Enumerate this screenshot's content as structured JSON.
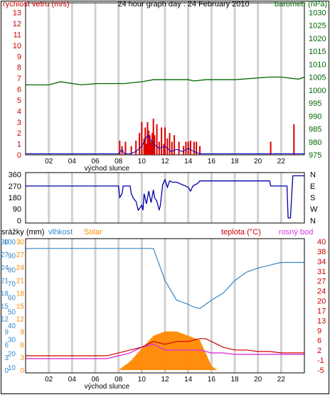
{
  "chart_data": [
    {
      "type": "line",
      "title": "24 hour graph day : 24 February 2010",
      "left_axis_label": "rychlost vetru (m/s)",
      "right_axis_label": "barometr (hPa)",
      "x_ticks": [
        "02",
        "04",
        "06",
        "08",
        "10",
        "12",
        "14",
        "16",
        "18",
        "20",
        "22"
      ],
      "x_caption": "východ slunce",
      "left_ticks": [
        "0",
        "1",
        "2",
        "3",
        "4",
        "5",
        "6",
        "7",
        "8",
        "9",
        "10",
        "11",
        "12",
        "13"
      ],
      "right_ticks": [
        "975",
        "980",
        "985",
        "990",
        "995",
        "1000",
        "1005",
        "1010",
        "1015",
        "1020",
        "1025",
        "1030"
      ],
      "ylim_left": [
        0,
        13.5
      ],
      "ylim_right": [
        975,
        1032
      ],
      "series": [
        {
          "name": "barometr",
          "color": "#006600",
          "axis": "right",
          "x": [
            0,
            2,
            3,
            4.8,
            6.2,
            8.5,
            10,
            11,
            14,
            14.5,
            15.5,
            17,
            18,
            21,
            22,
            23.5,
            24
          ],
          "y": [
            1002,
            1002,
            1003.2,
            1002,
            1002.5,
            1002.5,
            1003.2,
            1004,
            1004,
            1003.5,
            1004,
            1004,
            1004,
            1005,
            1005,
            1004.2,
            1005
          ]
        },
        {
          "name": "rychlost vetru",
          "color": "#dd0000",
          "axis": "left",
          "type": "bar",
          "x": [
            8.1,
            8.3,
            8.6,
            9.1,
            9.5,
            9.8,
            10.0,
            10.2,
            10.3,
            10.4,
            10.5,
            10.6,
            10.7,
            10.8,
            10.9,
            11.0,
            11.1,
            11.3,
            11.5,
            11.7,
            11.9,
            12.0,
            12.2,
            12.4,
            12.6,
            12.8,
            13.2,
            13.6,
            13.8,
            14.0,
            14.2,
            14.5,
            14.7,
            15.0,
            21.1,
            23.1
          ],
          "y": [
            1.3,
            0.8,
            1.2,
            0.8,
            1.3,
            2.0,
            3.0,
            1.5,
            2.5,
            1.0,
            3.0,
            2.2,
            1.8,
            1.2,
            2.0,
            3.3,
            1.8,
            2.8,
            1.2,
            2.5,
            1.0,
            2.5,
            1.5,
            2.0,
            1.2,
            1.8,
            1.2,
            0.8,
            1.2,
            1.2,
            1.3,
            1.2,
            1.2,
            0.8,
            1.2,
            2.8
          ]
        },
        {
          "name": "gust",
          "color": "#0000cc",
          "axis": "left",
          "x": [
            0,
            8.0,
            8.3,
            8.5,
            9.0,
            9.5,
            10.0,
            10.5,
            11.0,
            11.5,
            12.0,
            12.5,
            13.0,
            13.5,
            14.0,
            14.5,
            15.0,
            16.0,
            24
          ],
          "y": [
            0.1,
            0.1,
            0.5,
            0.1,
            0.1,
            0.3,
            0.8,
            1.8,
            1.0,
            0.6,
            0.8,
            0.3,
            0.5,
            0.3,
            0.6,
            0.3,
            0.1,
            0.1,
            0.1
          ]
        }
      ]
    },
    {
      "type": "line",
      "left_ticks": [
        "0",
        "90",
        "180",
        "270",
        "360"
      ],
      "right_ticks": [
        "N",
        "W",
        "S",
        "E",
        "N"
      ],
      "ylim": [
        -20,
        375
      ],
      "series": [
        {
          "name": "wind direction",
          "color": "#0000aa",
          "x": [
            0,
            8.0,
            8.1,
            8.3,
            8.4,
            9.0,
            9.1,
            9.3,
            9.5,
            9.7,
            10.0,
            10.1,
            10.2,
            10.4,
            10.6,
            10.8,
            11.0,
            11.1,
            11.3,
            11.5,
            11.6,
            11.8,
            12.0,
            12.2,
            12.4,
            12.6,
            12.8,
            13.0,
            13.5,
            14.0,
            14.2,
            14.4,
            14.8,
            15.0,
            16.0,
            18,
            20,
            21.0,
            21.1,
            22.5,
            22.6,
            22.8,
            23.0,
            24
          ],
          "y": [
            270,
            270,
            180,
            210,
            270,
            270,
            210,
            170,
            150,
            80,
            120,
            80,
            210,
            130,
            230,
            140,
            240,
            180,
            150,
            80,
            120,
            280,
            320,
            260,
            310,
            300,
            300,
            300,
            280,
            260,
            230,
            270,
            290,
            310,
            310,
            310,
            310,
            310,
            270,
            270,
            20,
            20,
            350,
            350
          ]
        }
      ]
    },
    {
      "type": "line",
      "labels": {
        "srazky": "srážky (mm)",
        "vlhkost": "vlhkost",
        "solar": "Solar",
        "teplota": "teplota (°C)",
        "rosny_bod": "rosný bod"
      },
      "x_ticks": [
        "02",
        "04",
        "06",
        "08",
        "10",
        "12",
        "14",
        "16",
        "18",
        "20",
        "22"
      ],
      "x_caption": "východ slunce",
      "srazky_ticks": [
        "0",
        "3",
        "6",
        "9",
        "12",
        "15",
        "18",
        "21",
        "24",
        "27",
        "30"
      ],
      "vlhkost_ticks": [
        "10",
        "20",
        "30",
        "40",
        "50",
        "60",
        "70",
        "80",
        "90",
        "100"
      ],
      "solar_ticks": [
        "0",
        "3",
        "6",
        "9",
        "12",
        "15",
        "18",
        "21",
        "24",
        "27",
        "30"
      ],
      "right_ticks": [
        "-5",
        "-1",
        "2",
        "6",
        "9",
        "13",
        "17",
        "20",
        "24",
        "27",
        "31",
        "34",
        "38",
        "40"
      ],
      "series": [
        {
          "name": "vlhkost",
          "color": "#3388cc",
          "x": [
            0,
            3,
            6,
            9,
            11,
            12,
            13,
            14,
            14.5,
            15,
            15.5,
            16,
            17,
            18,
            19,
            20,
            21,
            22,
            23,
            24
          ],
          "y": [
            95,
            95,
            95,
            95,
            95,
            72,
            58,
            55,
            53,
            52,
            55,
            58,
            63,
            72,
            78,
            81,
            83,
            85,
            85,
            85
          ]
        },
        {
          "name": "Solar",
          "color": "#ff8800",
          "type": "area",
          "x": [
            0,
            8,
            9,
            10,
            11,
            12,
            13,
            14,
            15,
            15.5,
            16,
            16.5,
            24
          ],
          "y": [
            0,
            0,
            2,
            5,
            8,
            9,
            9,
            8,
            7,
            4,
            1,
            0,
            0
          ]
        },
        {
          "name": "teplota",
          "color": "#cc0000",
          "x": [
            0,
            3,
            6,
            7,
            8,
            9,
            10,
            11,
            12,
            13,
            14,
            15,
            15.5,
            16,
            17,
            18,
            19,
            20,
            21,
            22,
            23,
            24
          ],
          "y": [
            0,
            0,
            0,
            0,
            1,
            2,
            3,
            5,
            4,
            5,
            5,
            6,
            6,
            5,
            3,
            2,
            2,
            1.5,
            1.5,
            1,
            1,
            1
          ]
        },
        {
          "name": "rosný bod",
          "color": "#dd33dd",
          "x": [
            0,
            3,
            6,
            7,
            8,
            9,
            10,
            11,
            12,
            13,
            14,
            15,
            16,
            17,
            18,
            19,
            20,
            21,
            22,
            23,
            24
          ],
          "y": [
            -1,
            -1,
            -1,
            -1,
            0,
            1,
            3,
            4,
            2,
            2,
            2,
            2,
            1,
            1,
            0.5,
            0.5,
            0.5,
            0.5,
            0.5,
            0.5,
            0.5
          ]
        }
      ]
    }
  ]
}
